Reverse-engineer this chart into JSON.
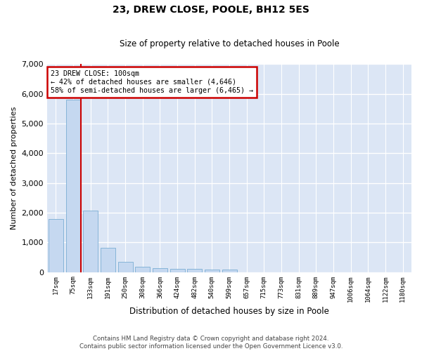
{
  "title": "23, DREW CLOSE, POOLE, BH12 5ES",
  "subtitle": "Size of property relative to detached houses in Poole",
  "xlabel": "Distribution of detached houses by size in Poole",
  "ylabel": "Number of detached properties",
  "bar_color": "#c5d8f0",
  "bar_edge_color": "#7aadd4",
  "background_color": "#dce6f5",
  "grid_color": "#ffffff",
  "categories": [
    "17sqm",
    "75sqm",
    "133sqm",
    "191sqm",
    "250sqm",
    "308sqm",
    "366sqm",
    "424sqm",
    "482sqm",
    "540sqm",
    "599sqm",
    "657sqm",
    "715sqm",
    "773sqm",
    "831sqm",
    "889sqm",
    "947sqm",
    "1006sqm",
    "1064sqm",
    "1122sqm",
    "1180sqm"
  ],
  "values": [
    1780,
    5800,
    2060,
    820,
    340,
    190,
    120,
    110,
    100,
    75,
    90,
    0,
    0,
    0,
    0,
    0,
    0,
    0,
    0,
    0,
    0
  ],
  "ylim": [
    0,
    7000
  ],
  "yticks": [
    0,
    1000,
    2000,
    3000,
    4000,
    5000,
    6000,
    7000
  ],
  "property_bin_index": 1,
  "annotation_title": "23 DREW CLOSE: 100sqm",
  "annotation_line1": "← 42% of detached houses are smaller (4,646)",
  "annotation_line2": "58% of semi-detached houses are larger (6,465) →",
  "vline_color": "#cc0000",
  "annotation_box_color": "#ffffff",
  "annotation_box_edge": "#cc0000",
  "footer_line1": "Contains HM Land Registry data © Crown copyright and database right 2024.",
  "footer_line2": "Contains public sector information licensed under the Open Government Licence v3.0."
}
